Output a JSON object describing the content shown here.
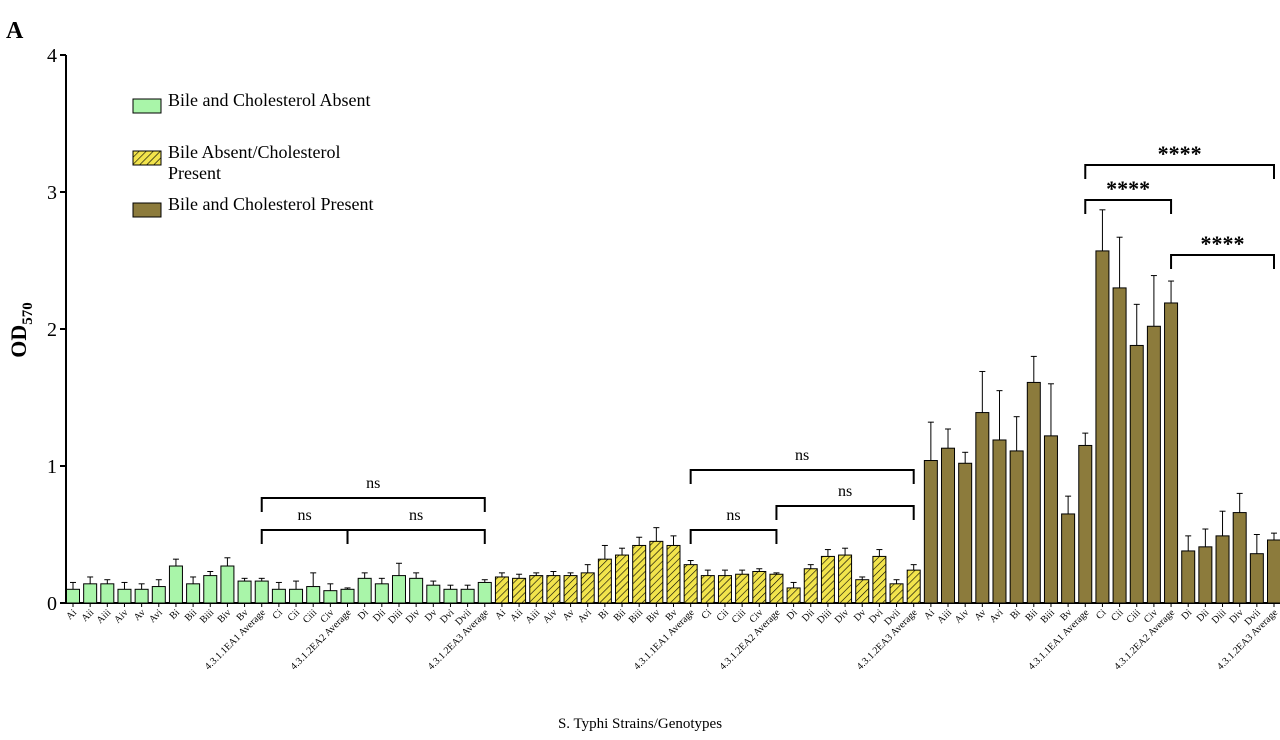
{
  "chart_data": {
    "type": "bar",
    "panel_label": "A",
    "ylabel": {
      "text": "OD",
      "subscript": "570"
    },
    "xlabel": "S. Typhi Strains/Genotypes",
    "ylim": [
      0,
      4
    ],
    "yticks": [
      0,
      1,
      2,
      3,
      4
    ],
    "series": [
      {
        "name": "Bile and Cholesterol Absent",
        "color": "#a9f5a9",
        "pattern": "solid",
        "categories": [
          "Ai",
          "Aii",
          "Aiii",
          "Aiv",
          "Av",
          "Avi",
          "Bi",
          "Bii",
          "Biii",
          "Biv",
          "Bv",
          "4.3.1.1EA1 Average",
          "Ci",
          "Cii",
          "Ciii",
          "Civ",
          "4.3.1.2EA2 Average",
          "Di",
          "Dii",
          "Diii",
          "Div",
          "Dv",
          "Dvi",
          "Dvii",
          "4.3.1.2EA3 Average"
        ],
        "values": [
          0.1,
          0.14,
          0.14,
          0.1,
          0.1,
          0.12,
          0.27,
          0.14,
          0.2,
          0.27,
          0.16,
          0.16,
          0.1,
          0.1,
          0.12,
          0.09,
          0.1,
          0.18,
          0.14,
          0.2,
          0.18,
          0.13,
          0.1,
          0.1,
          0.15
        ],
        "errors": [
          0.05,
          0.05,
          0.03,
          0.05,
          0.04,
          0.05,
          0.05,
          0.05,
          0.03,
          0.06,
          0.02,
          0.02,
          0.05,
          0.06,
          0.1,
          0.05,
          0.01,
          0.04,
          0.04,
          0.09,
          0.04,
          0.03,
          0.03,
          0.03,
          0.02
        ]
      },
      {
        "name": "Bile Absent/Cholesterol Present",
        "color": "#f2e44c",
        "pattern": "hatch",
        "categories": [
          "Ai",
          "Aii",
          "Aiii",
          "Aiv",
          "Av",
          "Avi",
          "Bi",
          "Bii",
          "Biii",
          "Biv",
          "Bv",
          "4.3.1.1EA1 Average",
          "Ci",
          "Cii",
          "Ciii",
          "Civ",
          "4.3.1.2EA2 Average",
          "Di",
          "Dii",
          "Diii",
          "Div",
          "Dv",
          "Dvi",
          "Dvii",
          "4.3.1.2EA3 Average"
        ],
        "values": [
          0.19,
          0.18,
          0.2,
          0.2,
          0.2,
          0.22,
          0.32,
          0.35,
          0.42,
          0.45,
          0.42,
          0.28,
          0.2,
          0.2,
          0.21,
          0.23,
          0.21,
          0.11,
          0.25,
          0.34,
          0.35,
          0.17,
          0.34,
          0.14,
          0.24
        ],
        "errors": [
          0.03,
          0.03,
          0.02,
          0.03,
          0.02,
          0.06,
          0.1,
          0.05,
          0.06,
          0.1,
          0.07,
          0.03,
          0.04,
          0.04,
          0.03,
          0.02,
          0.01,
          0.04,
          0.03,
          0.05,
          0.05,
          0.02,
          0.05,
          0.03,
          0.04
        ]
      },
      {
        "name": "Bile and Cholesterol Present",
        "color": "#8c7b3c",
        "pattern": "solid",
        "categories": [
          "Ai",
          "Aiii",
          "Aiv",
          "Av",
          "Avi",
          "Bi",
          "Bii",
          "Biii",
          "Bv",
          "4.3.1.1EA1 Average",
          "Ci",
          "Cii",
          "Ciii",
          "Civ",
          "4.3.1.2EA2 Average",
          "Di",
          "Dii",
          "Diii",
          "Div",
          "Dvii",
          "4.3.1.2EA3 Average"
        ],
        "values": [
          1.04,
          1.13,
          1.02,
          1.39,
          1.19,
          1.11,
          1.61,
          1.22,
          0.65,
          1.15,
          2.57,
          2.3,
          1.88,
          2.02,
          2.19,
          0.38,
          0.41,
          0.49,
          0.66,
          0.36,
          0.46
        ],
        "errors": [
          0.28,
          0.14,
          0.08,
          0.3,
          0.36,
          0.25,
          0.19,
          0.38,
          0.13,
          0.09,
          0.3,
          0.37,
          0.3,
          0.37,
          0.16,
          0.11,
          0.13,
          0.18,
          0.14,
          0.14,
          0.05
        ]
      }
    ],
    "annotations": [
      "ns",
      "ns",
      "ns",
      "ns",
      "ns",
      "ns",
      "****",
      "****",
      "****"
    ]
  }
}
